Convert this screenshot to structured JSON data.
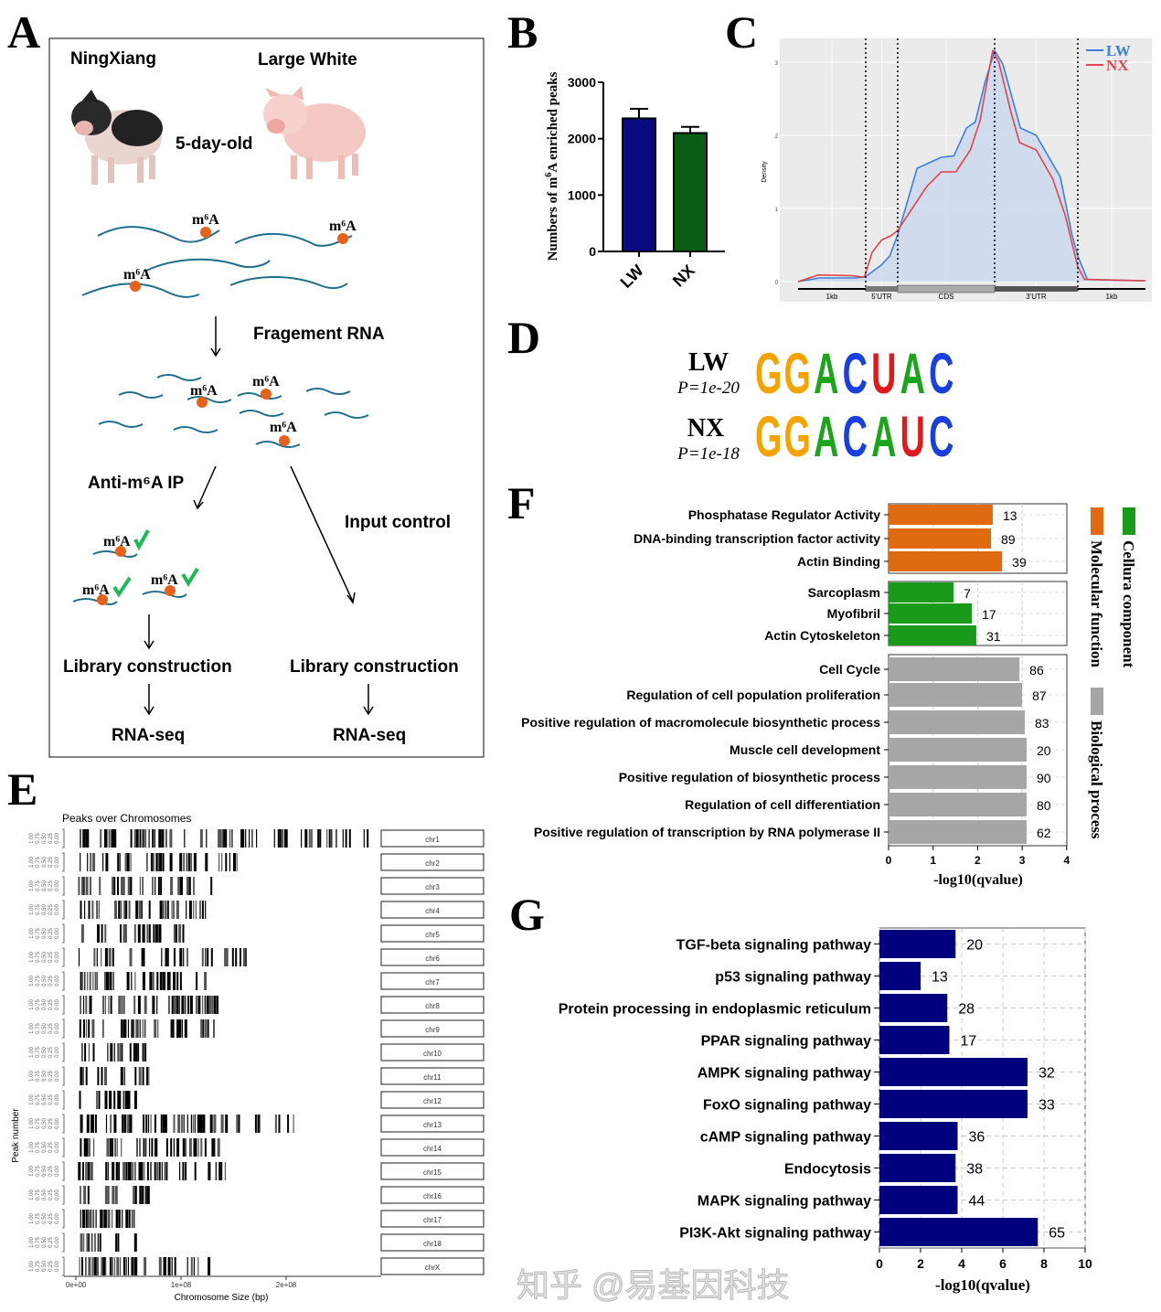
{
  "panel_letters": {
    "a": "A",
    "b": "B",
    "c": "C",
    "d": "D",
    "e": "E",
    "f": "F",
    "g": "G"
  },
  "panel_a": {
    "breed_left": "NingXiang",
    "breed_right": "Large White",
    "age": "5-day-old",
    "m6a_label": "m⁶A",
    "fragment_step": "Fragement RNA",
    "ip_step": "Anti-m⁶A IP",
    "input_step": "Input control",
    "library_left": "Library construction",
    "library_right": "Library construction",
    "seq_left": "RNA-seq",
    "seq_right": "RNA-seq",
    "colors": {
      "rna": "#1f6f8b",
      "m6a_dot": "#e8611a",
      "antibody": "#1db954"
    }
  },
  "chart_data": [
    {
      "id": "B",
      "type": "bar",
      "categories": [
        "LW",
        "NX"
      ],
      "values": [
        2360,
        2100
      ],
      "error_upper": [
        2530,
        2210
      ],
      "colors": [
        "#0a0a80",
        "#0a5e14"
      ],
      "ylabel_parts": [
        "Numbers of m",
        "6",
        "A enriched peaks"
      ],
      "yticks": [
        "0",
        "1000",
        "2000",
        "3000"
      ],
      "ylim": [
        0,
        3000
      ]
    },
    {
      "id": "C",
      "type": "line",
      "ylabel": "Density",
      "yticks": [
        "0",
        "1",
        "2",
        "3"
      ],
      "ylim": [
        0,
        3.25
      ],
      "regions": [
        "1kb",
        "5'UTR",
        "CDS",
        "3'UTR",
        "1kb"
      ],
      "grid": true,
      "legend": "top-right",
      "series": [
        {
          "name": "LW",
          "color": "#3c7fdc",
          "fill": "#c9d8ee",
          "x": [
            0,
            0.32,
            0.86,
            1.0,
            1.47,
            1.75,
            2.0,
            2.2,
            2.45,
            2.58,
            2.71,
            2.8,
            2.9,
            3.0,
            3.1,
            3.31,
            3.5,
            3.79,
            3.93,
            4.0,
            4.14,
            5
          ],
          "y": [
            0,
            0.05,
            0.05,
            0.07,
            0.22,
            0.35,
            0.64,
            1.55,
            1.7,
            1.72,
            2.1,
            2.18,
            2.72,
            3.16,
            2.97,
            2.1,
            2.0,
            1.43,
            0.64,
            0.35,
            0.03,
            0.01
          ]
        },
        {
          "name": "NX",
          "color": "#e0474c",
          "x": [
            0,
            0.3,
            0.8,
            0.98,
            1.2,
            1.5,
            1.8,
            2.0,
            2.15,
            2.3,
            2.45,
            2.6,
            2.75,
            2.85,
            2.93,
            2.98,
            3.05,
            3.2,
            3.3,
            3.5,
            3.7,
            3.85,
            4.0,
            4.1,
            5
          ],
          "y": [
            0,
            0.09,
            0.08,
            0.06,
            0.4,
            0.57,
            0.63,
            0.7,
            1.0,
            1.3,
            1.5,
            1.5,
            1.8,
            2.2,
            2.8,
            3.16,
            3.0,
            2.3,
            1.9,
            1.8,
            1.4,
            0.9,
            0.2,
            0.03,
            0.01
          ]
        }
      ]
    },
    {
      "id": "E",
      "type": "bar",
      "title": "Peaks over Chromosomes",
      "xlabel": "Chromosome Size (bp)",
      "ylabel": "Peak number",
      "xticks": [
        "0e+00",
        "1e+08",
        "2e+08"
      ],
      "yticks": [
        "0.00",
        "0.25",
        "0.50",
        "0.75",
        "1.00"
      ],
      "chromosomes": [
        "chr1",
        "chr2",
        "chr3",
        "chr4",
        "chr5",
        "chr6",
        "chr7",
        "chr8",
        "chr9",
        "chr10",
        "chr11",
        "chr12",
        "chr13",
        "chr14",
        "chr15",
        "chr16",
        "chr17",
        "chr18",
        "chrX"
      ],
      "span_mb": [
        278,
        154,
        133,
        132,
        103,
        170,
        124,
        134,
        141,
        69,
        81,
        63,
        210,
        137,
        142,
        80,
        63,
        56,
        128
      ]
    },
    {
      "id": "F",
      "type": "bar",
      "orientation": "horizontal",
      "xlabel": "-log10(qvalue)",
      "xticks": [
        "0",
        "1",
        "2",
        "3",
        "4"
      ],
      "xlim": [
        0,
        4
      ],
      "groups": [
        {
          "name": "Molecular function",
          "color": "#e06a10",
          "categories": [
            "Phosphatase Regulator Activity",
            "DNA-binding transcription factor activity",
            "Actin Binding"
          ],
          "values": [
            2.34,
            2.3,
            2.55
          ],
          "counts": [
            "13",
            "89",
            "39"
          ]
        },
        {
          "name": "Cellura component",
          "color": "#1a9a1a",
          "categories": [
            "Sarcoplasm",
            "Myofibril",
            "Actin Cytoskeleton"
          ],
          "values": [
            1.46,
            1.87,
            1.97
          ],
          "counts": [
            "7",
            "17",
            "31"
          ]
        },
        {
          "name": "Biological process",
          "color": "#a6a6a6",
          "categories": [
            "Cell Cycle",
            "Regulation of cell population proliferation",
            "Positive regulation of macromolecule biosynthetic process",
            "Muscle cell development",
            "Positive regulation of biosynthetic process",
            "Regulation of cell differentiation",
            "Positive regulation of transcription by RNA polymerase II"
          ],
          "values": [
            2.94,
            3.0,
            3.06,
            3.1,
            3.1,
            3.1,
            3.1
          ],
          "counts": [
            "86",
            "87",
            "83",
            "20",
            "90",
            "80",
            "62"
          ]
        }
      ]
    },
    {
      "id": "G",
      "type": "bar",
      "orientation": "horizontal",
      "xlabel": "-log10(qvalue)",
      "xticks": [
        "0",
        "2",
        "4",
        "6",
        "8",
        "10"
      ],
      "xlim": [
        0,
        10
      ],
      "color": "#00007f",
      "categories": [
        "TGF-beta signaling pathway",
        "p53 signaling pathway",
        "Protein processing in endoplasmic reticulum",
        "PPAR signaling pathway",
        "AMPK signaling pathway",
        "FoxO signaling pathway",
        "cAMP signaling pathway",
        "Endocytosis",
        "MAPK signaling pathway",
        "PI3K-Akt signaling pathway"
      ],
      "values": [
        3.7,
        2.0,
        3.3,
        3.4,
        7.2,
        7.2,
        3.8,
        3.7,
        3.8,
        7.7
      ],
      "counts": [
        "20",
        "13",
        "28",
        "17",
        "32",
        "33",
        "36",
        "38",
        "44",
        "65"
      ]
    }
  ],
  "panel_d": {
    "motifs": [
      {
        "group": "LW",
        "p": "P=1e-20",
        "letters": [
          "G",
          "G",
          "A",
          "C",
          "U",
          "A",
          "C"
        ]
      },
      {
        "group": "NX",
        "p": "P=1e-18",
        "letters": [
          "G",
          "G",
          "A",
          "C",
          "A",
          "U",
          "C"
        ]
      }
    ],
    "base_colors": {
      "G": "#f5a300",
      "A": "#1aa51a",
      "C": "#1a3fe0",
      "U": "#e01a1a"
    }
  },
  "watermark": "知乎 @易基因科技"
}
